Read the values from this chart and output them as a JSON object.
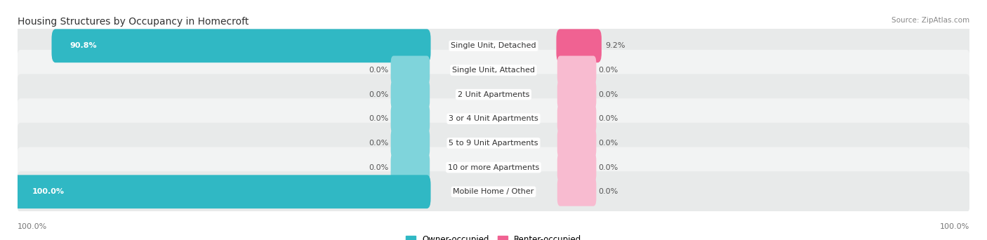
{
  "title": "Housing Structures by Occupancy in Homecroft",
  "source": "Source: ZipAtlas.com",
  "categories": [
    "Single Unit, Detached",
    "Single Unit, Attached",
    "2 Unit Apartments",
    "3 or 4 Unit Apartments",
    "5 to 9 Unit Apartments",
    "10 or more Apartments",
    "Mobile Home / Other"
  ],
  "owner_values": [
    90.8,
    0.0,
    0.0,
    0.0,
    0.0,
    0.0,
    100.0
  ],
  "renter_values": [
    9.2,
    0.0,
    0.0,
    0.0,
    0.0,
    0.0,
    0.0
  ],
  "owner_color": "#30b8c4",
  "owner_stub_color": "#7fd4db",
  "renter_color": "#f06292",
  "renter_stub_color": "#f8bbd0",
  "row_bg_color_odd": "#e8eaea",
  "row_bg_color_even": "#f2f3f3",
  "title_fontsize": 10,
  "source_fontsize": 7.5,
  "bar_label_fontsize": 8,
  "category_fontsize": 8,
  "legend_fontsize": 8.5,
  "axis_label_fontsize": 8
}
